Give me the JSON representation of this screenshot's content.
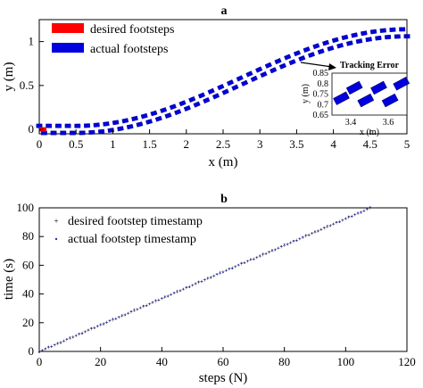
{
  "chart_data": [
    {
      "type": "scatter",
      "title": "a",
      "xlabel": "x (m)",
      "ylabel": "y (m)",
      "xlim": [
        0,
        5
      ],
      "ylim": [
        -0.05,
        1.25
      ],
      "x_ticks": [
        "0",
        "0.5",
        "1",
        "1.5",
        "2",
        "2.5",
        "3",
        "3.5",
        "4",
        "4.5",
        "5"
      ],
      "y_ticks": [
        "0",
        "0.5",
        "1"
      ],
      "legend_position": "top-left",
      "grid": false,
      "series": [
        {
          "name": "desired footsteps",
          "color": "#ff0000",
          "x": [
            0.0
          ],
          "y": [
            0.0
          ]
        },
        {
          "name": "actual footsteps",
          "color": "#0000dd",
          "x_range": [
            0,
            5
          ],
          "y_start": 0.0,
          "y_end": 1.1,
          "foot_offset": 0.04
        }
      ],
      "inset": {
        "title": "Tracking Error",
        "xlabel": "x (m)",
        "ylabel": "y (m)",
        "x_ticks": [
          "3.4",
          "3.6"
        ],
        "y_ticks": [
          "0.85",
          "0.8",
          "0.75",
          "0.7",
          "0.65"
        ],
        "xlim": [
          3.3,
          3.7
        ],
        "ylim": [
          0.65,
          0.85
        ],
        "footsteps": [
          {
            "x": 3.35,
            "y": 0.73
          },
          {
            "x": 3.42,
            "y": 0.78
          },
          {
            "x": 3.48,
            "y": 0.72
          },
          {
            "x": 3.55,
            "y": 0.78
          },
          {
            "x": 3.61,
            "y": 0.72
          },
          {
            "x": 3.67,
            "y": 0.8
          }
        ]
      }
    },
    {
      "type": "scatter",
      "title": "b",
      "xlabel": "steps (N)",
      "ylabel": "time (s)",
      "xlim": [
        0,
        120
      ],
      "ylim": [
        0,
        100
      ],
      "x_ticks": [
        "0",
        "20",
        "40",
        "60",
        "80",
        "100",
        "120"
      ],
      "y_ticks": [
        "0",
        "20",
        "40",
        "60",
        "80",
        "100"
      ],
      "legend_position": "top-left",
      "grid": false,
      "series": [
        {
          "name": "desired footstep timestamp",
          "color": "#ff00ff",
          "marker": "+"
        },
        {
          "name": "actual footstep timestamp",
          "color": "#3333aa",
          "marker": "."
        }
      ],
      "step_count": 108,
      "time_per_step": 0.925
    }
  ]
}
